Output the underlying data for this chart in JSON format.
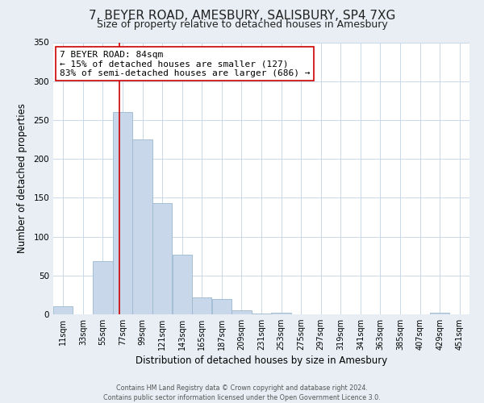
{
  "title": "7, BEYER ROAD, AMESBURY, SALISBURY, SP4 7XG",
  "subtitle": "Size of property relative to detached houses in Amesbury",
  "xlabel": "Distribution of detached houses by size in Amesbury",
  "ylabel": "Number of detached properties",
  "bin_starts": [
    11,
    33,
    55,
    77,
    99,
    121,
    143,
    165,
    187,
    209,
    231,
    253,
    275,
    297,
    319,
    341,
    363,
    385,
    407,
    429,
    451
  ],
  "bin_width": 22,
  "bar_heights": [
    10,
    0,
    68,
    260,
    225,
    143,
    77,
    22,
    20,
    5,
    1,
    2,
    0,
    0,
    0,
    0,
    0,
    0,
    0,
    2,
    0
  ],
  "bar_color": "#c8d8ea",
  "bar_edge_color": "#9ab8d0",
  "property_size": 84,
  "vline_color": "#cc0000",
  "ylim": [
    0,
    350
  ],
  "yticks": [
    0,
    50,
    100,
    150,
    200,
    250,
    300,
    350
  ],
  "annotation_text": "7 BEYER ROAD: 84sqm\n← 15% of detached houses are smaller (127)\n83% of semi-detached houses are larger (686) →",
  "annotation_box_color": "#ffffff",
  "annotation_box_edge_color": "#cc0000",
  "footer_line1": "Contains HM Land Registry data © Crown copyright and database right 2024.",
  "footer_line2": "Contains public sector information licensed under the Open Government Licence 3.0.",
  "bg_color": "#e8eef4",
  "plot_bg_color": "#ffffff",
  "title_fontsize": 11,
  "subtitle_fontsize": 9,
  "axis_label_fontsize": 8.5,
  "tick_fontsize": 7,
  "annot_fontsize": 8,
  "footer_fontsize": 5.8,
  "grid_color": "#c8d8e8"
}
